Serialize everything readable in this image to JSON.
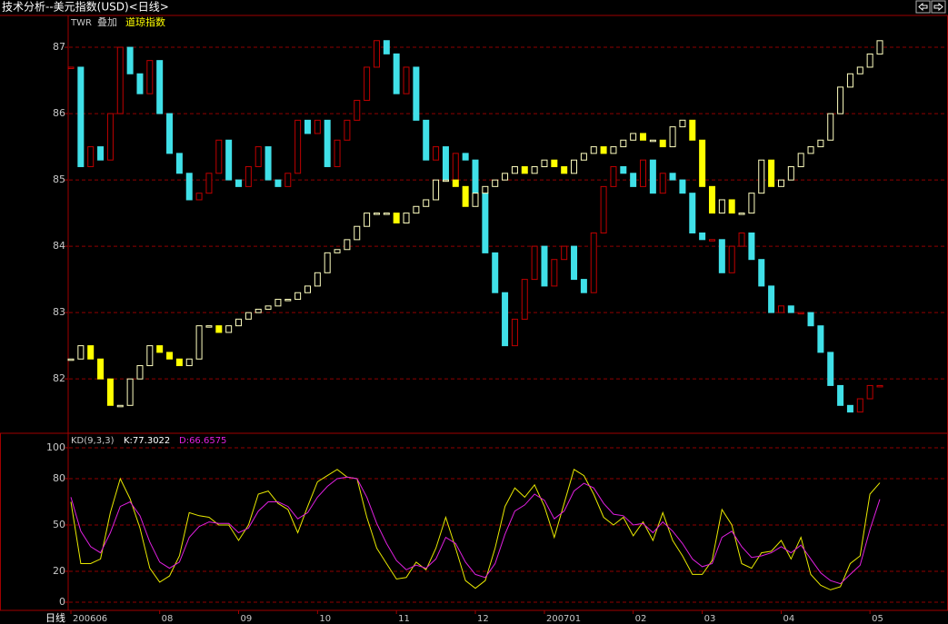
{
  "title": "技术分析--美元指数(USD)<日线>",
  "chart_data": [
    {
      "type": "candlestick",
      "overlay_label": "叠加",
      "grid": true,
      "ylim": [
        81.18,
        87.48
      ],
      "yticks": [
        82,
        83,
        84,
        85,
        86,
        87
      ],
      "y2lim": [
        10588,
        13795
      ],
      "categories": [
        "200606",
        null,
        null,
        null,
        null,
        null,
        null,
        null,
        null,
        "08",
        null,
        null,
        null,
        null,
        null,
        null,
        null,
        "09",
        null,
        null,
        null,
        null,
        null,
        null,
        null,
        "10",
        null,
        null,
        null,
        null,
        null,
        null,
        null,
        "11",
        null,
        null,
        null,
        null,
        null,
        null,
        null,
        "12",
        null,
        null,
        null,
        null,
        null,
        null,
        "200701",
        null,
        null,
        null,
        null,
        null,
        null,
        null,
        null,
        "02",
        null,
        null,
        null,
        null,
        null,
        null,
        "03",
        null,
        null,
        null,
        null,
        null,
        null,
        null,
        "04",
        null,
        null,
        null,
        null,
        null,
        null,
        null,
        null,
        "05",
        null
      ],
      "series": [
        {
          "name": "TWR",
          "up_color": "#c00000",
          "down_color": "#40e0e8",
          "values": [
            86.7,
            85.2,
            85.5,
            85.3,
            86.0,
            87.0,
            86.6,
            86.3,
            86.8,
            86.0,
            85.4,
            85.1,
            84.7,
            84.8,
            85.1,
            85.6,
            85.0,
            84.9,
            85.2,
            85.5,
            85.0,
            84.9,
            85.1,
            85.9,
            85.7,
            85.9,
            85.2,
            85.6,
            85.9,
            86.2,
            86.7,
            87.1,
            86.9,
            86.3,
            86.7,
            85.9,
            85.3,
            85.5,
            85.0,
            85.4,
            85.3,
            84.8,
            83.9,
            83.3,
            82.5,
            82.9,
            83.5,
            84.0,
            83.4,
            83.8,
            84.0,
            83.5,
            83.3,
            84.2,
            84.9,
            85.2,
            85.1,
            84.9,
            85.3,
            84.8,
            85.1,
            85.0,
            84.8,
            84.2,
            84.1,
            84.1,
            83.6,
            84.0,
            84.2,
            83.8,
            83.4,
            83.0,
            83.1,
            83.0,
            83.0,
            82.8,
            82.4,
            81.9,
            81.6,
            81.5,
            81.7,
            81.9,
            81.9
          ]
        },
        {
          "name": "道琼指数",
          "axis": "y2",
          "up_color": "#ffffc0",
          "down_color": "#ffff00",
          "values": [
            11158,
            11260,
            11158,
            11005,
            10802,
            10802,
            11005,
            11107,
            11260,
            11209,
            11158,
            11107,
            11158,
            11413,
            11413,
            11362,
            11413,
            11464,
            11514,
            11540,
            11565,
            11616,
            11616,
            11667,
            11718,
            11820,
            11973,
            11998,
            12074,
            12176,
            12278,
            12278,
            12278,
            12202,
            12278,
            12329,
            12380,
            12532,
            12532,
            12482,
            12329,
            12431,
            12482,
            12532,
            12583,
            12634,
            12583,
            12634,
            12685,
            12634,
            12583,
            12685,
            12736,
            12787,
            12736,
            12787,
            12838,
            12889,
            12838,
            12838,
            12787,
            12940,
            12991,
            12838,
            12482,
            12278,
            12380,
            12278,
            12278,
            12431,
            12685,
            12482,
            12532,
            12634,
            12736,
            12787,
            12838,
            13041,
            13245,
            13347,
            13398,
            13499,
            13601
          ]
        }
      ]
    },
    {
      "type": "line",
      "title": "KD(9,3,3)",
      "x_label": "日线",
      "grid": true,
      "ylim": [
        -5.3,
        108.8
      ],
      "yticks": [
        0,
        20,
        50,
        80,
        100
      ],
      "legend_labels": [
        "K:77.3022",
        "D:66.6575"
      ],
      "series": [
        {
          "name": "K",
          "color": "#e8e800",
          "values": [
            65,
            25,
            25,
            28,
            58,
            80,
            67,
            48,
            22,
            13,
            17,
            30,
            58,
            56,
            55,
            50,
            50,
            40,
            50,
            70,
            72,
            64,
            60,
            45,
            62,
            78,
            82,
            86,
            81,
            80,
            55,
            35,
            25,
            15,
            16,
            26,
            21,
            35,
            55,
            35,
            14,
            9,
            14,
            35,
            62,
            74,
            68,
            76,
            62,
            42,
            64,
            86,
            82,
            70,
            55,
            50,
            55,
            43,
            52,
            40,
            58,
            40,
            30,
            18,
            18,
            27,
            60,
            50,
            25,
            22,
            32,
            33,
            40,
            28,
            42,
            18,
            11,
            8,
            10,
            25,
            30,
            70,
            77.3022
          ]
        },
        {
          "name": "D",
          "color": "#e020e0",
          "values": [
            68,
            46,
            36,
            32,
            45,
            62,
            65,
            56,
            39,
            26,
            22,
            26,
            42,
            49,
            52,
            51,
            51,
            45,
            48,
            59,
            65,
            65,
            62,
            54,
            58,
            68,
            75,
            80,
            81,
            80,
            68,
            51,
            38,
            27,
            21,
            24,
            22,
            28,
            42,
            38,
            26,
            18,
            16,
            25,
            44,
            59,
            63,
            70,
            66,
            54,
            59,
            72,
            77,
            74,
            64,
            57,
            56,
            50,
            51,
            45,
            52,
            46,
            38,
            28,
            23,
            25,
            42,
            46,
            36,
            29,
            30,
            32,
            36,
            32,
            37,
            28,
            19,
            14,
            12,
            18,
            24,
            47,
            66.6575
          ]
        }
      ]
    }
  ]
}
